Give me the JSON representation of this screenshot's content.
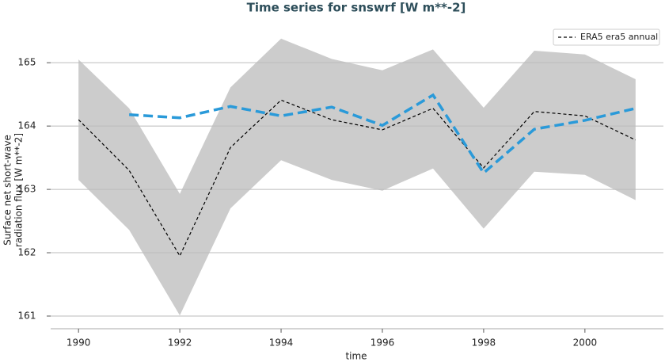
{
  "chart_data": {
    "type": "line",
    "title": "Time series for snswrf [W m**-2]",
    "x_label": "time",
    "y_label": [
      "Surface net short-wave",
      "radiation flux [W m**-2]"
    ],
    "x": [
      1990,
      1991,
      1992,
      1993,
      1994,
      1995,
      1996,
      1997,
      1998,
      1999,
      2000,
      2001
    ],
    "series": [
      {
        "name": "ERA5 era5 annual",
        "color": "#000000",
        "dash": "4,3",
        "width": 1.2,
        "values": [
          164.1,
          163.3,
          161.95,
          163.66,
          164.41,
          164.1,
          163.94,
          164.28,
          163.34,
          164.23,
          164.16,
          163.78
        ]
      },
      {
        "color": "#2a9ad9",
        "dash": "12,6",
        "width": 3.5,
        "values": [
          null,
          164.18,
          164.13,
          164.31,
          164.16,
          164.3,
          164.01,
          164.49,
          163.26,
          163.95,
          164.09,
          164.28
        ]
      }
    ],
    "band": {
      "color": "#cccccc",
      "upper": [
        165.05,
        164.28,
        162.93,
        164.61,
        165.38,
        165.06,
        164.88,
        165.21,
        164.29,
        165.19,
        165.13,
        164.74
      ],
      "lower": [
        163.15,
        162.36,
        161.01,
        162.7,
        163.46,
        163.15,
        162.98,
        163.33,
        162.38,
        163.28,
        163.23,
        162.83
      ]
    },
    "xlim": [
      1989.45,
      2001.55
    ],
    "ylim": [
      160.8,
      165.59
    ],
    "xticks": [
      1990,
      1992,
      1994,
      1996,
      1998,
      2000
    ],
    "yticks": [
      161,
      162,
      163,
      164,
      165
    ],
    "grid": true,
    "legend": "upper right"
  }
}
